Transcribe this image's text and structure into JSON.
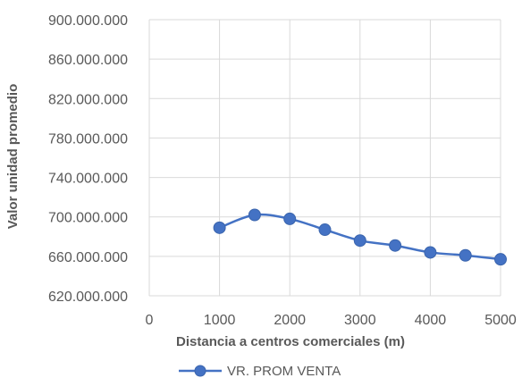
{
  "chart_data": {
    "type": "scatter",
    "xlabel": "Distancia a centros comerciales (m)",
    "ylabel": "Valor unidad promedio",
    "xlim": [
      0,
      5000
    ],
    "ylim": [
      620000000,
      900000000
    ],
    "x_ticks": [
      "0",
      "1000",
      "2000",
      "3000",
      "4000",
      "5000"
    ],
    "y_ticks": [
      "620.000.000",
      "660.000.000",
      "700.000.000",
      "740.000.000",
      "780.000.000",
      "820.000.000",
      "860.000.000",
      "900.000.000"
    ],
    "grid": true,
    "legend_position": "bottom",
    "series": [
      {
        "name": "VR. PROM VENTA",
        "color": "#4472C4",
        "line": "smooth",
        "marker": "circle",
        "x": [
          1000,
          1500,
          2000,
          2500,
          3000,
          3500,
          4000,
          4500,
          5000
        ],
        "y": [
          689000000,
          702000000,
          698000000,
          687000000,
          676000000,
          671000000,
          664000000,
          661000000,
          657000000
        ]
      }
    ]
  }
}
